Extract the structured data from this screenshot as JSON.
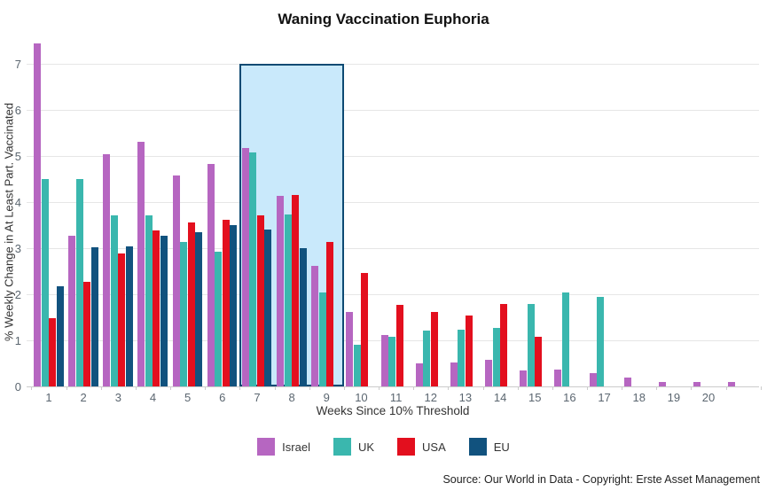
{
  "title": "Waning Vaccination Euphoria",
  "footer": {
    "source": "Source: Our World in Data - Copyright: Erste Asset Management"
  },
  "chart_data": {
    "type": "bar",
    "title": "Waning Vaccination Euphoria",
    "xlabel": "Weeks Since 10% Threshold",
    "ylabel": "% Weekly Change in At Least Part. Vaccinated",
    "ylim": [
      0,
      7.5
    ],
    "yticks": [
      0,
      1,
      2,
      3,
      4,
      5,
      6,
      7
    ],
    "grid": true,
    "legend_position": "bottom",
    "categories": [
      "1",
      "2",
      "3",
      "4",
      "5",
      "6",
      "7",
      "8",
      "9",
      "10",
      "11",
      "12",
      "13",
      "14",
      "15",
      "16",
      "17",
      "18",
      "19",
      "20",
      ""
    ],
    "series": [
      {
        "name": "Israel",
        "color": "#b666c1",
        "values": [
          7.45,
          3.26,
          5.04,
          5.31,
          4.57,
          4.83,
          5.17,
          4.14,
          2.61,
          1.61,
          1.11,
          0.5,
          0.51,
          0.58,
          0.34,
          0.36,
          0.28,
          0.2,
          0.1,
          0.1,
          0.1
        ]
      },
      {
        "name": "UK",
        "color": "#3ab7ae",
        "values": [
          4.5,
          4.5,
          3.72,
          3.71,
          3.14,
          2.93,
          5.07,
          3.74,
          2.03,
          0.9,
          1.07,
          1.21,
          1.24,
          1.27,
          1.78,
          2.03,
          1.95,
          null,
          null,
          null,
          null
        ]
      },
      {
        "name": "USA",
        "color": "#e30f1e",
        "values": [
          1.49,
          2.27,
          2.88,
          3.38,
          3.56,
          3.62,
          3.72,
          4.16,
          3.14,
          2.46,
          1.76,
          1.61,
          1.53,
          1.78,
          1.08,
          null,
          null,
          null,
          null,
          null,
          null
        ]
      },
      {
        "name": "EU",
        "color": "#11527e",
        "values": [
          2.17,
          3.01,
          3.04,
          3.27,
          3.35,
          3.5,
          3.4,
          3.0,
          null,
          null,
          null,
          null,
          null,
          null,
          null,
          null,
          null,
          null,
          null,
          null,
          null
        ]
      }
    ],
    "highlight_region": {
      "from_category": "7",
      "to_category": "9",
      "fill": "#c9e9fb",
      "border": "#0d4a73"
    }
  }
}
